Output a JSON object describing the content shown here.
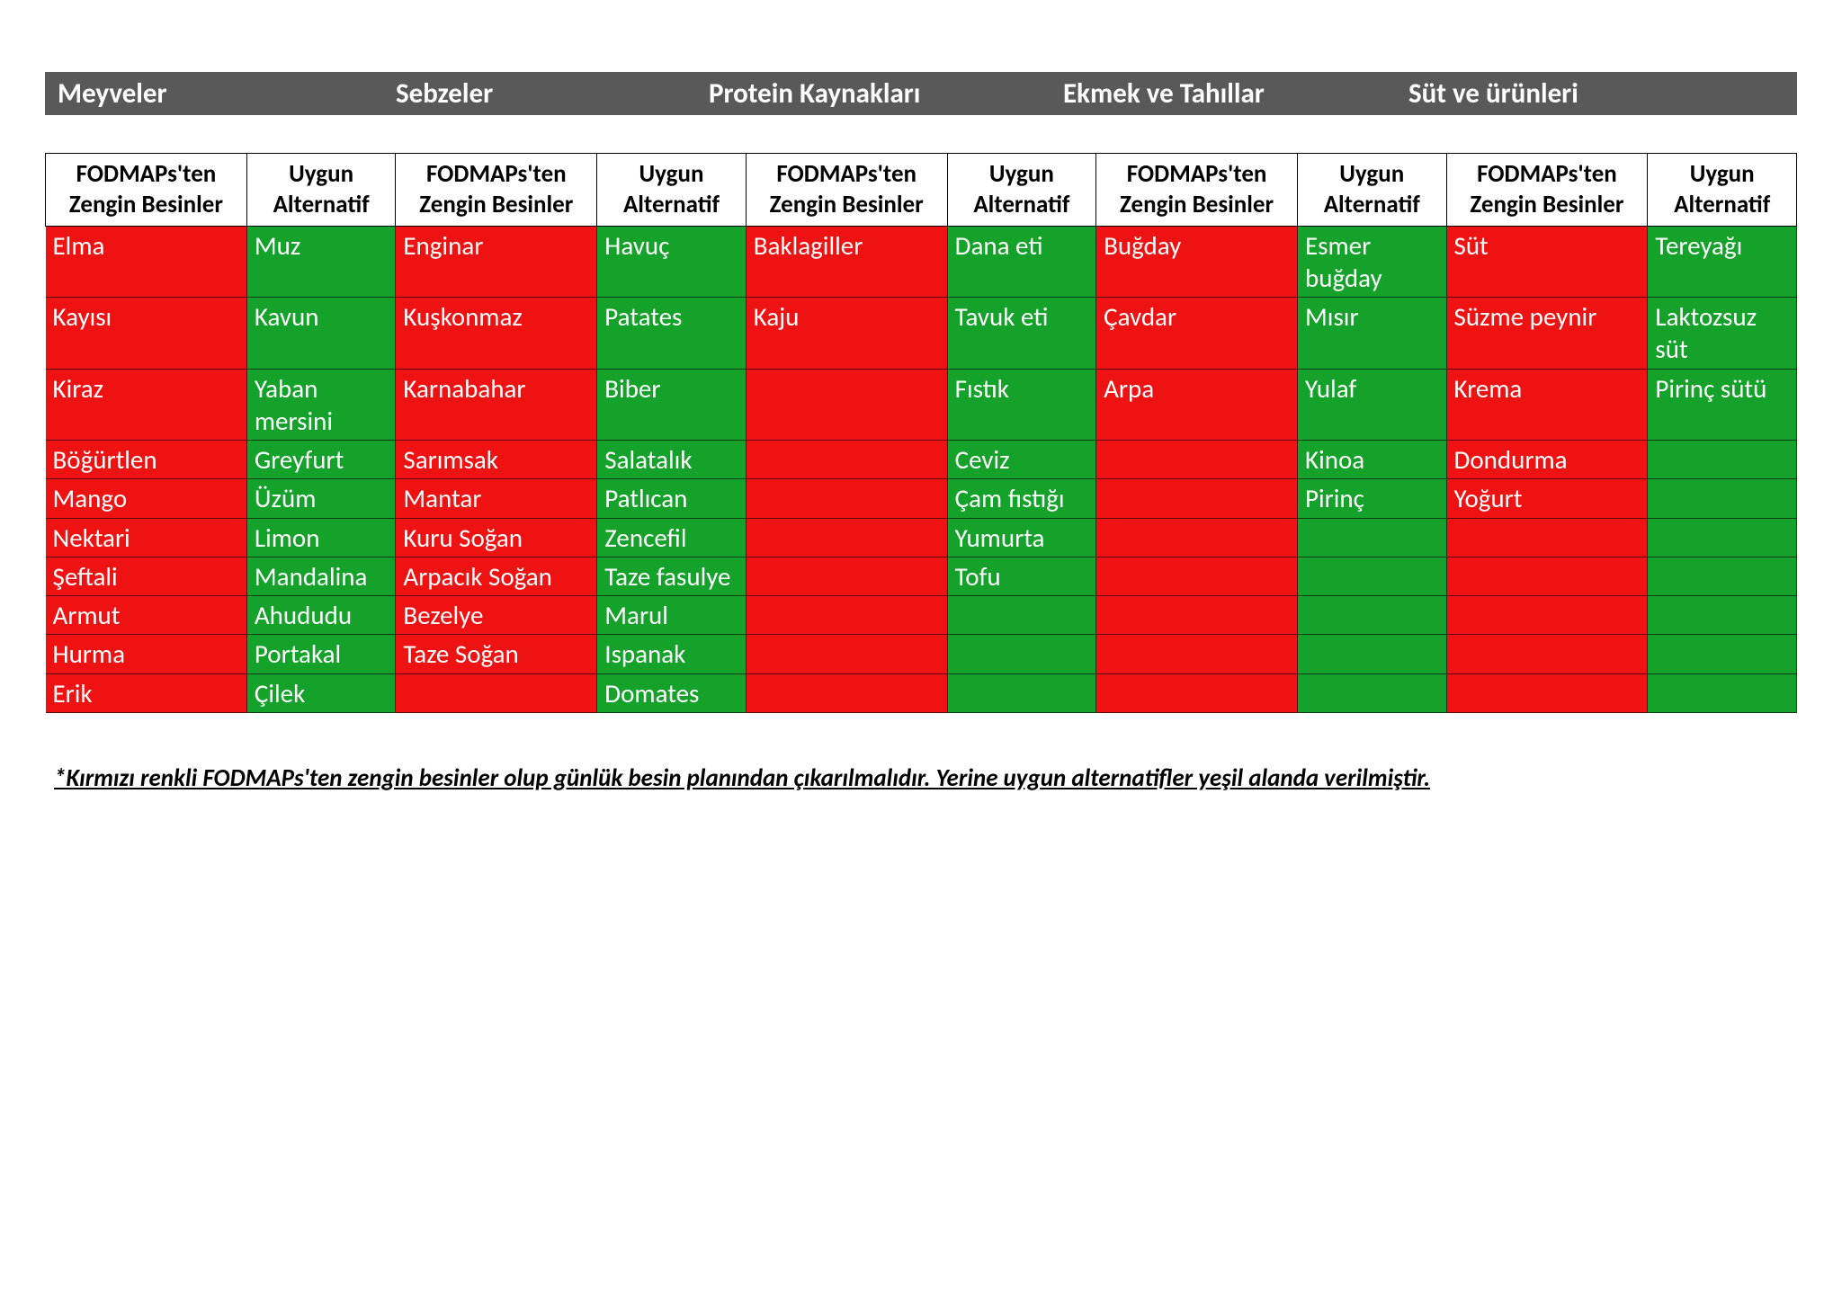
{
  "styling": {
    "category_bar_bg": "#595959",
    "category_bar_fg": "#ffffff",
    "header_bg": "#ffffff",
    "header_fg": "#000000",
    "header_border": "#000000",
    "cell_red_bg": "#ee1212",
    "cell_green_bg": "#14a22a",
    "cell_fg": "#ffffff",
    "cell_red_border": "#5a0b0b",
    "cell_green_border": "#0d3b14",
    "page_bg": "#ffffff",
    "category_fontsize_pt": 23,
    "header_fontsize_pt": 20,
    "cell_fontsize_pt": 22,
    "footnote_fontsize_pt": 20
  },
  "categories": [
    "Meyveler",
    "Sebzeler",
    "Protein Kaynakları",
    "Ekmek ve Tahıllar",
    "Süt ve ürünleri"
  ],
  "headers": {
    "rich": "FODMAPs'ten Zengin Besinler",
    "alt": "Uygun Alternatif"
  },
  "columns": [
    {
      "category_index": 0,
      "type": "rich",
      "cells": [
        "Elma",
        "Kayısı",
        "Kiraz",
        "Böğürtlen",
        "Mango",
        "Nektari",
        "Şeftali",
        "Armut",
        "Hurma",
        "Erik"
      ]
    },
    {
      "category_index": 0,
      "type": "alt",
      "cells": [
        "Muz",
        "Kavun",
        "Yaban mersini",
        "Greyfurt",
        "Üzüm",
        " Limon",
        "Mandalina",
        "Ahududu",
        "Portakal",
        "Çilek"
      ]
    },
    {
      "category_index": 1,
      "type": "rich",
      "cells": [
        "Enginar",
        "Kuşkonmaz",
        "Karnabahar",
        "Sarımsak",
        "Mantar",
        "Kuru Soğan",
        "Arpacık Soğan",
        "Bezelye",
        "Taze Soğan",
        ""
      ]
    },
    {
      "category_index": 1,
      "type": "alt",
      "cells": [
        "Havuç",
        "Patates",
        "Biber",
        "Salatalık",
        "Patlıcan",
        " Zencefil",
        "Taze fasulye",
        "Marul",
        "Ispanak",
        "Domates"
      ]
    },
    {
      "category_index": 2,
      "type": "rich",
      "cells": [
        "Baklagiller",
        "Kaju",
        "",
        "",
        "",
        "",
        "",
        "",
        "",
        ""
      ]
    },
    {
      "category_index": 2,
      "type": "alt",
      "cells": [
        "Dana eti",
        "Tavuk eti",
        "Fıstık",
        "Ceviz",
        "Çam fıstığı",
        "Yumurta",
        "Tofu",
        "",
        "",
        ""
      ]
    },
    {
      "category_index": 3,
      "type": "rich",
      "cells": [
        "Buğday",
        "Çavdar",
        "Arpa",
        "",
        "",
        "",
        "",
        "",
        "",
        ""
      ]
    },
    {
      "category_index": 3,
      "type": "alt",
      "cells": [
        "Esmer buğday",
        "Mısır",
        "Yulaf",
        "Kinoa",
        "Pirinç",
        "",
        "",
        "",
        "",
        ""
      ]
    },
    {
      "category_index": 4,
      "type": "rich",
      "cells": [
        "Süt",
        "Süzme peynir",
        "Krema",
        "Dondurma",
        "Yoğurt",
        "",
        "",
        "",
        "",
        ""
      ]
    },
    {
      "category_index": 4,
      "type": "alt",
      "cells": [
        "Tereyağı",
        "Laktozsuz süt",
        "Pirinç sütü",
        "",
        "",
        "",
        "",
        "",
        "",
        ""
      ]
    }
  ],
  "row_count": 10,
  "footnote": "*Kırmızı renkli FODMAPs'ten zengin besinler olup günlük  besin planından çıkarılmalıdır. Yerine uygun alternatifler yeşil alanda verilmiştir."
}
